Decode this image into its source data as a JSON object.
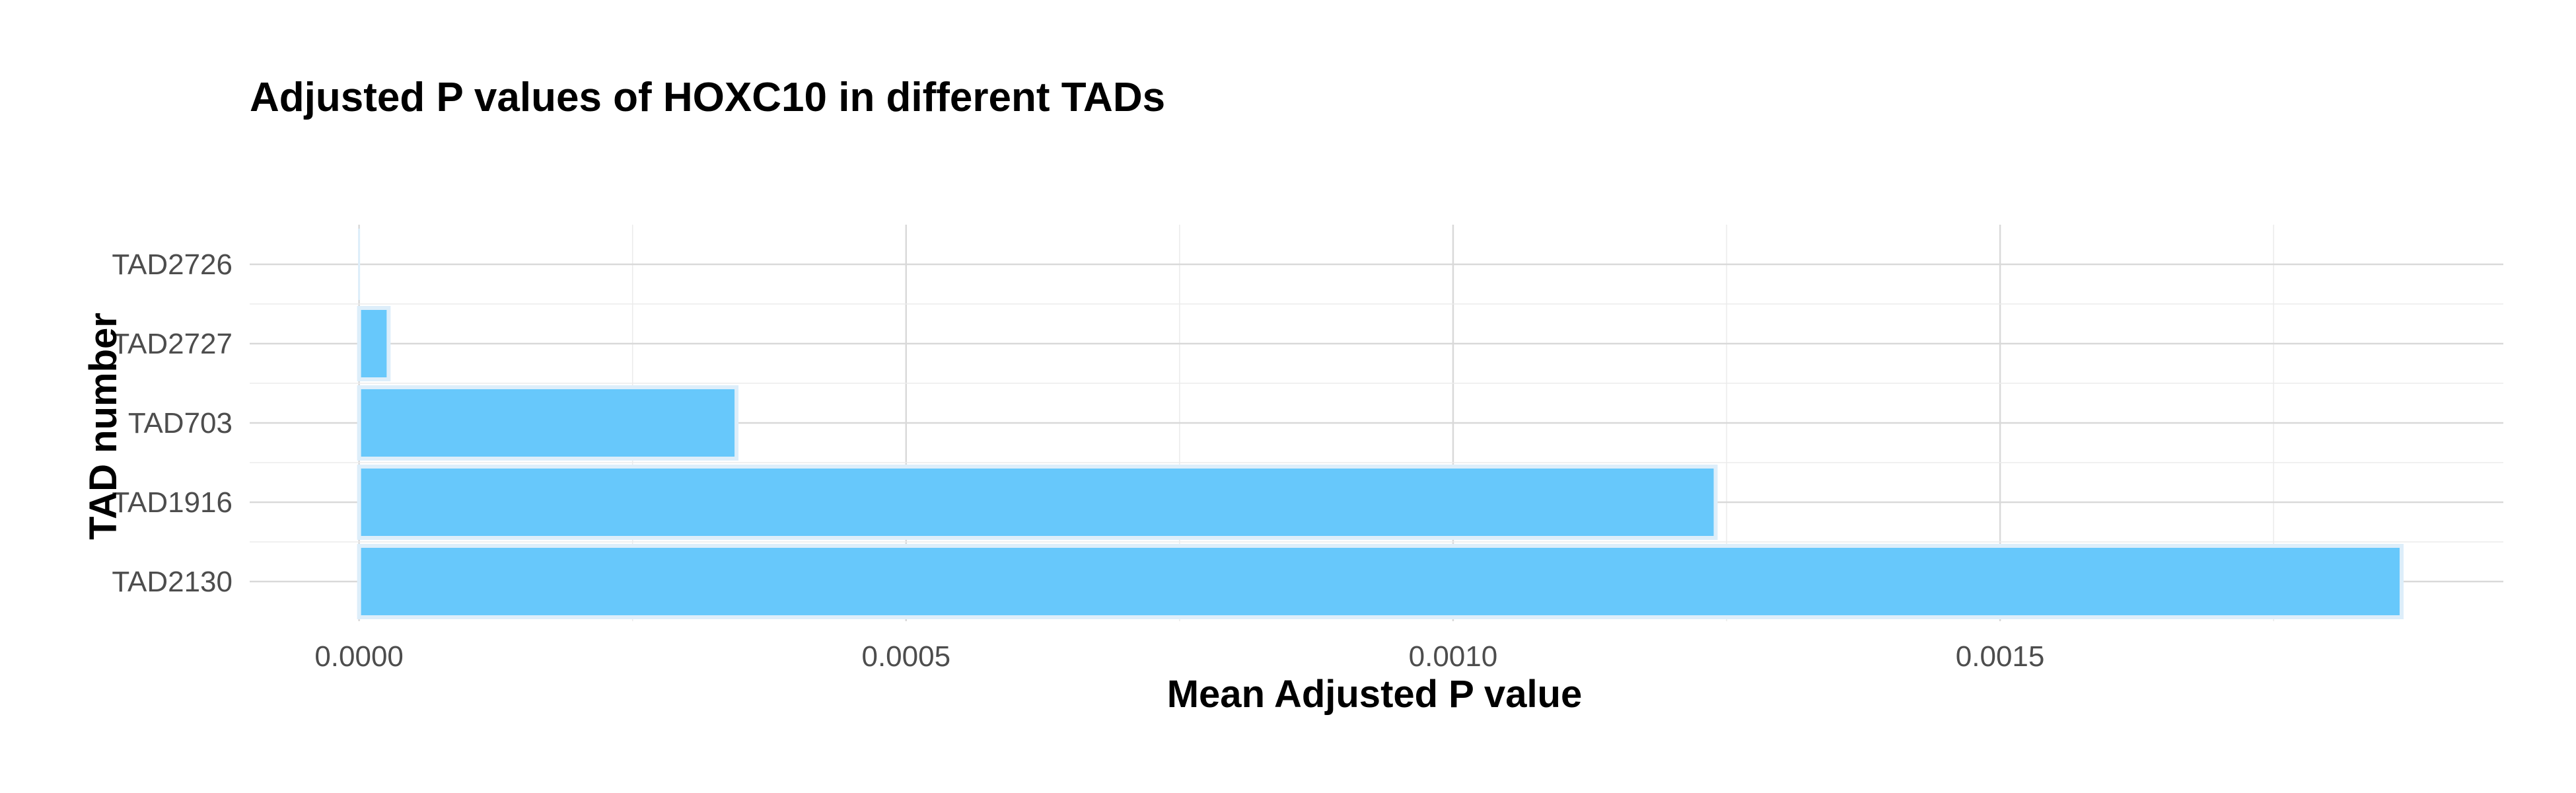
{
  "chart_data": {
    "type": "bar",
    "orientation": "horizontal",
    "title": "Adjusted P values of HOXC10 in different TADs",
    "xlabel": "Mean Adjusted P value",
    "ylabel": "TAD number",
    "categories": [
      "TAD2726",
      "TAD2727",
      "TAD703",
      "TAD1916",
      "TAD2130"
    ],
    "values": [
      0.0,
      2.7e-05,
      0.000345,
      0.00124,
      0.001867
    ],
    "xlim": [
      -0.0001,
      0.00196
    ],
    "x_ticks": [
      0.0,
      0.0005,
      0.001,
      0.0015
    ],
    "x_tick_labels": [
      "0.0000",
      "0.0005",
      "0.0010",
      "0.0015"
    ],
    "x_minor_ticks": [
      0.00025,
      0.00075,
      0.00125,
      0.00175
    ],
    "bar_color": "#67c8fb",
    "bar_outline_color": "#ddeefa",
    "grid": true,
    "legend": "none"
  }
}
